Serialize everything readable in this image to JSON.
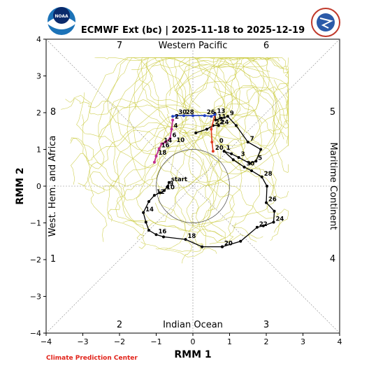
{
  "chart_data": {
    "type": "line",
    "title": "ECMWF Ext (bc) | 2025-11-18 to 2025-12-19",
    "xlabel": "RMM 1",
    "ylabel": "RMM 2",
    "xlim": [
      -4,
      4
    ],
    "ylim": [
      -4,
      4
    ],
    "xticks": [
      "−4",
      "−3",
      "−2",
      "−1",
      "0",
      "1",
      "2",
      "3",
      "4"
    ],
    "yticks": [
      "−4",
      "−3",
      "−2",
      "−1",
      "0",
      "1",
      "2",
      "3",
      "4"
    ],
    "phases": [
      "1",
      "2",
      "3",
      "4",
      "5",
      "6",
      "7",
      "8"
    ],
    "regions": {
      "top": "Western Pacific",
      "bottom": "Indian Ocean",
      "left": "West. Hem. and Africa",
      "right": "Maritime Continent"
    },
    "ensemble_color": "#c9c93a",
    "observed_path": {
      "color": "#000000",
      "start_label": "start",
      "points": [
        {
          "label": "20",
          "x": 0.8,
          "y": -1.65
        },
        {
          "label": "",
          "x": 1.3,
          "y": -1.5
        },
        {
          "label": "22",
          "x": 1.75,
          "y": -1.12
        },
        {
          "label": "",
          "x": 1.92,
          "y": -1.08
        },
        {
          "label": "24",
          "x": 2.2,
          "y": -0.98
        },
        {
          "label": "",
          "x": 2.22,
          "y": -0.68
        },
        {
          "label": "26",
          "x": 2.0,
          "y": -0.45
        },
        {
          "label": "",
          "x": 2.02,
          "y": 0.0
        },
        {
          "label": "28",
          "x": 1.88,
          "y": 0.25
        },
        {
          "label": "",
          "x": 1.6,
          "y": 0.42
        },
        {
          "label": "30",
          "x": 1.4,
          "y": 0.52
        },
        {
          "label": "",
          "x": 1.1,
          "y": 0.72
        },
        {
          "label": "1",
          "x": 0.85,
          "y": 0.95
        },
        {
          "label": "",
          "x": 1.05,
          "y": 0.88
        },
        {
          "label": "3",
          "x": 1.25,
          "y": 0.78
        },
        {
          "label": "",
          "x": 1.55,
          "y": 0.62
        },
        {
          "label": "5",
          "x": 1.72,
          "y": 0.68
        },
        {
          "label": "",
          "x": 1.85,
          "y": 1.0
        },
        {
          "label": "7",
          "x": 1.5,
          "y": 1.2
        },
        {
          "label": "",
          "x": 1.18,
          "y": 1.65
        },
        {
          "label": "9",
          "x": 0.95,
          "y": 1.9
        },
        {
          "label": "",
          "x": 0.78,
          "y": 1.85
        },
        {
          "label": "11",
          "x": 0.62,
          "y": 1.8
        },
        {
          "label": "",
          "x": 0.6,
          "y": 1.98
        },
        {
          "label": "13",
          "x": 0.6,
          "y": 1.95
        }
      ],
      "early_points": [
        {
          "label": "start",
          "x": -0.65,
          "y": 0.1
        },
        {
          "label": "9",
          "x": -0.7,
          "y": -0.02
        },
        {
          "label": "10",
          "x": -0.78,
          "y": -0.12
        },
        {
          "label": "",
          "x": -0.9,
          "y": -0.18
        },
        {
          "label": "12",
          "x": -1.05,
          "y": -0.25
        },
        {
          "label": "",
          "x": -1.2,
          "y": -0.42
        },
        {
          "label": "14",
          "x": -1.35,
          "y": -0.72
        },
        {
          "label": "",
          "x": -1.28,
          "y": -0.98
        },
        {
          "label": "",
          "x": -1.2,
          "y": -1.2
        },
        {
          "label": "16",
          "x": -1.0,
          "y": -1.32
        },
        {
          "label": "",
          "x": -0.8,
          "y": -1.38
        },
        {
          "label": "18",
          "x": -0.2,
          "y": -1.45
        },
        {
          "label": "",
          "x": 0.25,
          "y": -1.65
        },
        {
          "label": "20",
          "x": 0.8,
          "y": -1.65
        }
      ]
    },
    "forecast_blue": {
      "color": "#1f3fbf",
      "points": [
        {
          "label": "",
          "x": 0.6,
          "y": 1.95
        },
        {
          "label": "",
          "x": 0.5,
          "y": 1.9
        },
        {
          "label": "26",
          "x": 0.32,
          "y": 1.92
        },
        {
          "label": "",
          "x": 0.0,
          "y": 1.92
        },
        {
          "label": "28",
          "x": -0.25,
          "y": 1.92
        },
        {
          "label": "30",
          "x": -0.45,
          "y": 1.92
        },
        {
          "label": "",
          "x": -0.55,
          "y": 1.9
        }
      ]
    },
    "forecast_black_mid": {
      "color": "#000000",
      "points": [
        {
          "label": "",
          "x": 0.08,
          "y": 1.45
        },
        {
          "label": "",
          "x": 0.38,
          "y": 1.55
        },
        {
          "label": "22",
          "x": 0.55,
          "y": 1.65
        },
        {
          "label": "24",
          "x": 0.7,
          "y": 1.65
        }
      ]
    },
    "forecast_red": {
      "color": "#e03b1f",
      "points": [
        {
          "label": "",
          "x": 0.6,
          "y": 1.95
        },
        {
          "label": "",
          "x": 0.5,
          "y": 1.55
        },
        {
          "label": "",
          "x": 0.52,
          "y": 1.2
        },
        {
          "label": "20",
          "x": 0.55,
          "y": 0.95
        }
      ]
    },
    "forecast_magenta": {
      "color": "#c2318f",
      "points": [
        {
          "label": "2",
          "x": -0.55,
          "y": 1.8
        },
        {
          "label": "4",
          "x": -0.58,
          "y": 1.55
        },
        {
          "label": "6",
          "x": -0.62,
          "y": 1.3
        },
        {
          "label": "",
          "x": -0.75,
          "y": 1.2
        },
        {
          "label": "14",
          "x": -0.85,
          "y": 1.15
        },
        {
          "label": "16",
          "x": -0.92,
          "y": 1.02
        },
        {
          "label": "18",
          "x": -1.0,
          "y": 0.82
        },
        {
          "label": "",
          "x": -1.05,
          "y": 0.65
        }
      ]
    },
    "extra_labels": [
      {
        "label": "10",
        "x": -0.45,
        "y": 1.2
      },
      {
        "label": "0",
        "x": 0.72,
        "y": 1.18
      }
    ],
    "credit": "Climate Prediction Center",
    "logo_left": "NOAA",
    "logo_right": "NATIONAL WEATHER SERVICE"
  }
}
